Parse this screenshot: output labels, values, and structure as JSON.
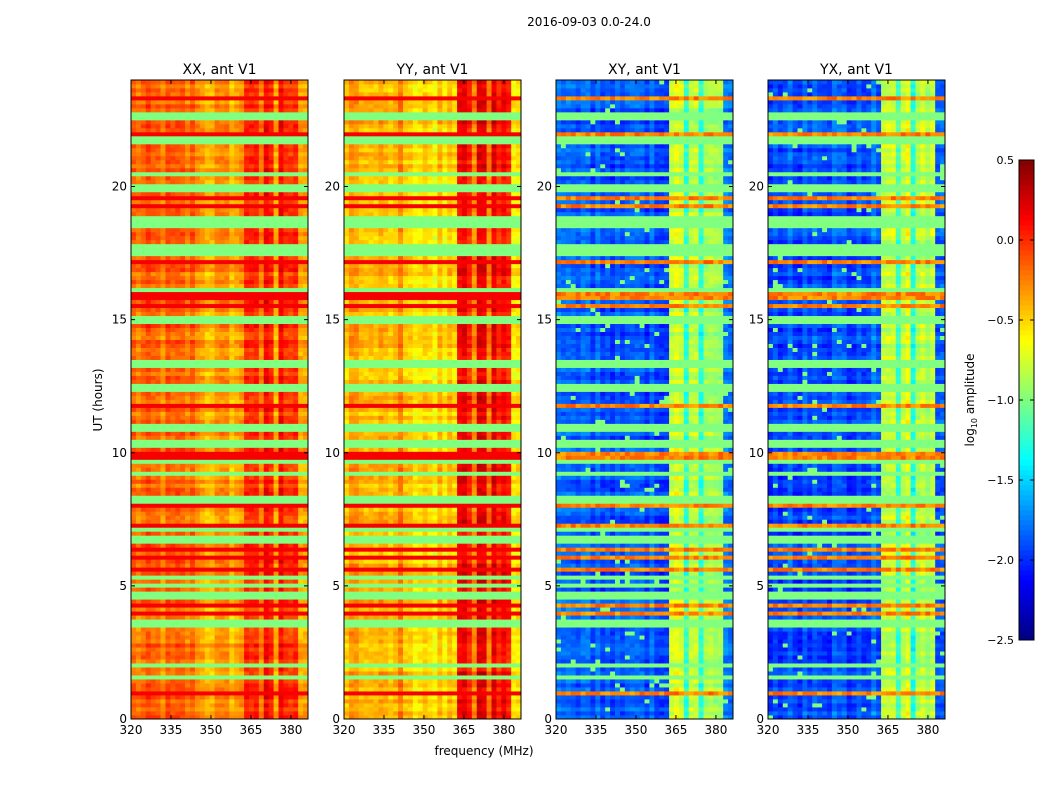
{
  "chart_data": {
    "type": "heatmap",
    "title": "2016-09-03 0.0-24.0",
    "xlabel": "frequency (MHz)",
    "ylabel": "UT (hours)",
    "xlim": [
      320,
      386.4
    ],
    "ylim": [
      0,
      24
    ],
    "xticks": [
      "320",
      "335",
      "350",
      "365",
      "380"
    ],
    "yticks": [
      "0",
      "5",
      "10",
      "15",
      "20"
    ],
    "colorbar": {
      "label_main": "log",
      "label_sub": "10",
      "label_rest": " amplitude",
      "colormap": "jet",
      "range": [
        -2.5,
        0.5
      ],
      "ticks": [
        "0.5",
        "0.0",
        "−0.5",
        "−1.0",
        "−1.5",
        "−2.0",
        "−2.5"
      ]
    },
    "panels": [
      {
        "title": "XX, ant V1",
        "base_level": -0.3,
        "band_level": 0.05
      },
      {
        "title": "YY, ant V1",
        "base_level": -0.45,
        "band_level": 0.1
      },
      {
        "title": "XY, ant V1",
        "base_level": -1.9,
        "band_level": -0.8
      },
      {
        "title": "YX, ant V1",
        "base_level": -1.9,
        "band_level": -0.8
      }
    ],
    "band_MHz": [
      362,
      382
    ],
    "flagged_hours": [
      [
        1.5,
        1.6
      ],
      [
        2.0,
        2.1
      ],
      [
        3.5,
        3.7
      ],
      [
        4.6,
        4.7
      ],
      [
        5.0,
        5.1
      ],
      [
        5.3,
        5.4
      ],
      [
        6.6,
        6.8
      ],
      [
        7.1,
        7.2
      ],
      [
        8.2,
        8.3
      ],
      [
        9.2,
        9.3
      ],
      [
        9.6,
        9.7
      ],
      [
        10.2,
        10.4
      ],
      [
        10.9,
        11.0
      ],
      [
        12.4,
        12.6
      ],
      [
        13.3,
        13.5
      ],
      [
        14.9,
        15.1
      ],
      [
        16.1,
        16.2
      ],
      [
        17.5,
        17.8
      ],
      [
        18.5,
        18.8
      ],
      [
        19.9,
        20.0
      ],
      [
        20.4,
        20.5
      ],
      [
        21.6,
        21.8
      ],
      [
        22.5,
        22.7
      ]
    ],
    "flagged_level": -1.0,
    "hot_hours": [
      0.9,
      1.0,
      4.0,
      4.3,
      5.6,
      6.1,
      6.4,
      7.3,
      7.8,
      8.0,
      9.8,
      10.0,
      11.4,
      11.8,
      15.5,
      15.8,
      16.0,
      17.2,
      17.4,
      19.3,
      19.6,
      22.0,
      23.3
    ],
    "hot_level": 0.15
  }
}
